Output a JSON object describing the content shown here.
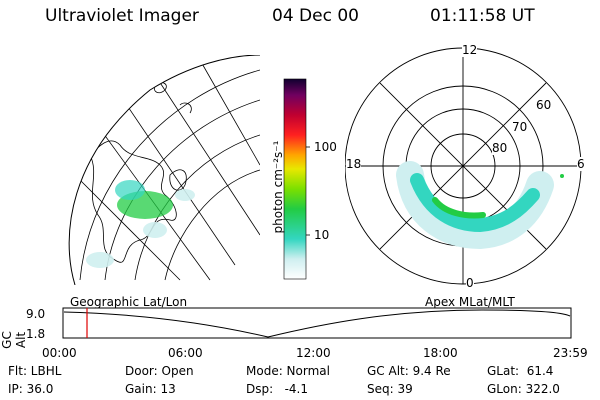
{
  "header": {
    "title": "Ultraviolet Imager",
    "date": "04 Dec 00",
    "time": "01:11:58 UT"
  },
  "colorbar": {
    "label": "photon cm⁻²s⁻¹",
    "ticks": [
      "100",
      "10"
    ]
  },
  "polar_plot": {
    "mlt_labels": [
      "12",
      "18",
      "6",
      "0"
    ],
    "lat_labels": [
      "60",
      "70",
      "80"
    ]
  },
  "timeline": {
    "left_title": "Geographic Lat/Lon",
    "right_title": "Apex MLat/MLT",
    "axis_label": "GC Alt",
    "y_ticks": [
      "9.0",
      "1.8"
    ],
    "x_ticks": [
      "00:00",
      "06:00",
      "12:00",
      "18:00",
      "23:59"
    ],
    "marker_color": "#e00000"
  },
  "info": {
    "row1": {
      "filter": "Flt: LBHL",
      "door": "Door: Open",
      "mode": "Mode: Normal",
      "gc_alt": "GC Alt: 9.4 Re",
      "glat": "GLat:  61.4"
    },
    "row2": {
      "ip": "IP: 36.0",
      "gain": "Gain: 13",
      "dsp": "Dsp:   -4.1",
      "seq": "Seq: 39",
      "glon": "GLon: 322.0"
    }
  },
  "colors": {
    "aurora_green": "#22cc44",
    "aurora_cyan": "#33d6c0",
    "aurora_faint": "#cfeff0"
  }
}
